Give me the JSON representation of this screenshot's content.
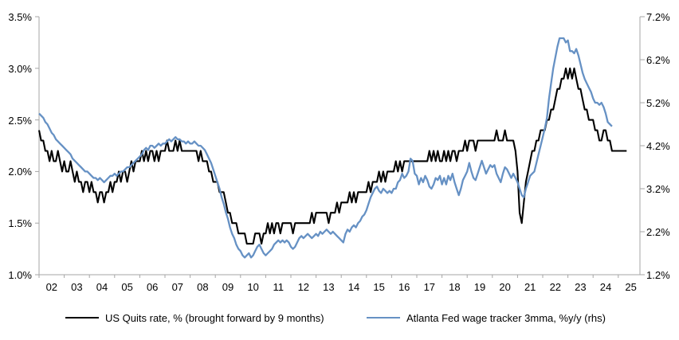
{
  "chart_data": {
    "type": "line",
    "title": "",
    "grid": "off",
    "legend_position": "bottom",
    "x_axis": {
      "tick_labels": [
        "02",
        "03",
        "04",
        "05",
        "06",
        "07",
        "08",
        "09",
        "10",
        "11",
        "12",
        "13",
        "14",
        "15",
        "16",
        "17",
        "18",
        "19",
        "20",
        "21",
        "22",
        "23",
        "24",
        "25"
      ],
      "tick_values": [
        2002,
        2003,
        2004,
        2005,
        2006,
        2007,
        2008,
        2009,
        2010,
        2011,
        2012,
        2013,
        2014,
        2015,
        2016,
        2017,
        2018,
        2019,
        2020,
        2021,
        2022,
        2023,
        2024,
        2025
      ],
      "range": [
        2002,
        2025.87
      ]
    },
    "left_axis": {
      "min": 1.0,
      "max": 3.5,
      "tick_step": 0.5,
      "tick_values": [
        3.5,
        3.0,
        2.5,
        2.0,
        1.5,
        1.0
      ],
      "tick_labels": [
        "3.5%",
        "3.0%",
        "2.5%",
        "2.0%",
        "1.5%",
        "1.0%"
      ]
    },
    "right_axis": {
      "min": 1.2,
      "max": 7.2,
      "tick_step": 1.0,
      "tick_values": [
        7.2,
        6.2,
        5.2,
        4.2,
        3.2,
        2.2,
        1.2
      ],
      "tick_labels": [
        "7.2%",
        "6.2%",
        "5.2%",
        "4.2%",
        "3.2%",
        "2.2%",
        "1.2%"
      ]
    },
    "axis_color": "#a6a6a6",
    "series": [
      {
        "name": "US Quits rate, % (brought forward by 9 months)",
        "axis": "left",
        "color": "#000000",
        "start_year": 2002.0,
        "step_years": 0.0833333,
        "values": [
          2.4,
          2.3,
          2.3,
          2.2,
          2.2,
          2.1,
          2.2,
          2.1,
          2.1,
          2.2,
          2.1,
          2.0,
          2.1,
          2.0,
          2.0,
          2.1,
          2.0,
          1.9,
          2.0,
          1.9,
          1.9,
          1.8,
          1.9,
          1.9,
          1.8,
          1.9,
          1.8,
          1.8,
          1.7,
          1.8,
          1.8,
          1.7,
          1.8,
          1.8,
          1.9,
          1.8,
          1.9,
          1.9,
          2.0,
          1.9,
          2.0,
          2.0,
          1.9,
          2.0,
          2.1,
          2.0,
          2.1,
          2.1,
          2.1,
          2.2,
          2.1,
          2.2,
          2.1,
          2.2,
          2.2,
          2.1,
          2.2,
          2.1,
          2.2,
          2.2,
          2.2,
          2.3,
          2.2,
          2.2,
          2.2,
          2.3,
          2.2,
          2.3,
          2.2,
          2.2,
          2.2,
          2.2,
          2.2,
          2.2,
          2.2,
          2.2,
          2.1,
          2.2,
          2.1,
          2.1,
          2.1,
          2.0,
          2.0,
          1.9,
          1.9,
          1.9,
          1.8,
          1.8,
          1.8,
          1.7,
          1.6,
          1.6,
          1.5,
          1.5,
          1.5,
          1.4,
          1.4,
          1.4,
          1.4,
          1.3,
          1.3,
          1.3,
          1.3,
          1.4,
          1.4,
          1.4,
          1.3,
          1.4,
          1.4,
          1.5,
          1.4,
          1.5,
          1.4,
          1.5,
          1.5,
          1.4,
          1.5,
          1.5,
          1.5,
          1.5,
          1.5,
          1.4,
          1.5,
          1.5,
          1.5,
          1.5,
          1.5,
          1.5,
          1.5,
          1.5,
          1.6,
          1.5,
          1.6,
          1.6,
          1.6,
          1.6,
          1.6,
          1.6,
          1.5,
          1.6,
          1.6,
          1.6,
          1.7,
          1.6,
          1.7,
          1.7,
          1.7,
          1.7,
          1.8,
          1.7,
          1.8,
          1.7,
          1.8,
          1.8,
          1.8,
          1.8,
          1.8,
          1.9,
          1.8,
          1.9,
          1.9,
          1.9,
          2.0,
          1.9,
          2.0,
          1.9,
          2.0,
          2.0,
          2.0,
          2.0,
          2.1,
          2.0,
          2.1,
          2.0,
          2.1,
          2.1,
          2.1,
          2.1,
          2.1,
          2.1,
          2.1,
          2.1,
          2.1,
          2.1,
          2.1,
          2.1,
          2.2,
          2.1,
          2.2,
          2.1,
          2.2,
          2.1,
          2.1,
          2.2,
          2.1,
          2.2,
          2.1,
          2.2,
          2.2,
          2.1,
          2.2,
          2.2,
          2.2,
          2.3,
          2.2,
          2.3,
          2.3,
          2.3,
          2.2,
          2.3,
          2.3,
          2.3,
          2.3,
          2.3,
          2.3,
          2.3,
          2.3,
          2.3,
          2.4,
          2.3,
          2.3,
          2.3,
          2.4,
          2.3,
          2.3,
          2.3,
          2.3,
          2.2,
          2.0,
          1.6,
          1.5,
          1.7,
          1.9,
          2.0,
          2.1,
          2.2,
          2.2,
          2.3,
          2.3,
          2.4,
          2.4,
          2.4,
          2.5,
          2.5,
          2.6,
          2.6,
          2.7,
          2.8,
          2.8,
          2.9,
          2.9,
          3.0,
          2.9,
          3.0,
          2.9,
          3.0,
          2.9,
          2.8,
          2.8,
          2.7,
          2.6,
          2.6,
          2.5,
          2.5,
          2.5,
          2.4,
          2.4,
          2.3,
          2.3,
          2.4,
          2.4,
          2.3,
          2.3,
          2.2,
          2.2,
          2.2,
          2.2,
          2.2,
          2.2,
          2.2,
          2.2
        ]
      },
      {
        "name": "Atlanta Fed wage tracker 3mma, %y/y (rhs)",
        "axis": "right",
        "color": "#6691c4",
        "start_year": 2002.0,
        "step_years": 0.0833333,
        "values": [
          4.95,
          4.9,
          4.85,
          4.75,
          4.7,
          4.6,
          4.5,
          4.45,
          4.35,
          4.3,
          4.25,
          4.2,
          4.15,
          4.1,
          4.05,
          4.0,
          3.9,
          3.85,
          3.8,
          3.75,
          3.7,
          3.65,
          3.6,
          3.6,
          3.55,
          3.5,
          3.45,
          3.45,
          3.4,
          3.45,
          3.4,
          3.35,
          3.4,
          3.45,
          3.5,
          3.5,
          3.55,
          3.5,
          3.55,
          3.6,
          3.6,
          3.65,
          3.7,
          3.7,
          3.75,
          3.8,
          3.85,
          3.9,
          3.95,
          4.0,
          4.1,
          4.15,
          4.1,
          4.2,
          4.2,
          4.15,
          4.2,
          4.25,
          4.2,
          4.25,
          4.25,
          4.3,
          4.35,
          4.3,
          4.35,
          4.4,
          4.35,
          4.35,
          4.3,
          4.3,
          4.25,
          4.3,
          4.25,
          4.25,
          4.3,
          4.25,
          4.2,
          4.2,
          4.15,
          4.1,
          4.0,
          3.9,
          3.8,
          3.65,
          3.5,
          3.35,
          3.2,
          3.0,
          2.85,
          2.65,
          2.5,
          2.3,
          2.15,
          2.05,
          1.9,
          1.8,
          1.75,
          1.65,
          1.6,
          1.65,
          1.7,
          1.6,
          1.65,
          1.75,
          1.85,
          1.9,
          1.8,
          1.7,
          1.65,
          1.7,
          1.75,
          1.8,
          1.9,
          1.95,
          2.0,
          1.95,
          2.0,
          1.95,
          2.0,
          1.95,
          1.85,
          1.8,
          1.85,
          1.95,
          2.05,
          2.1,
          2.05,
          2.1,
          2.15,
          2.1,
          2.05,
          2.1,
          2.15,
          2.1,
          2.2,
          2.15,
          2.2,
          2.25,
          2.2,
          2.15,
          2.2,
          2.15,
          2.1,
          2.05,
          2.0,
          1.95,
          2.15,
          2.25,
          2.2,
          2.3,
          2.35,
          2.3,
          2.4,
          2.45,
          2.55,
          2.6,
          2.7,
          2.85,
          3.0,
          3.1,
          3.2,
          3.25,
          3.15,
          3.1,
          3.2,
          3.15,
          3.1,
          3.15,
          3.1,
          3.2,
          3.2,
          3.35,
          3.4,
          3.55,
          3.45,
          3.5,
          3.6,
          3.9,
          3.85,
          3.55,
          3.5,
          3.3,
          3.45,
          3.35,
          3.5,
          3.4,
          3.25,
          3.2,
          3.3,
          3.45,
          3.4,
          3.5,
          3.3,
          3.45,
          3.3,
          3.5,
          3.4,
          3.55,
          3.35,
          3.2,
          3.05,
          3.2,
          3.4,
          3.5,
          3.6,
          3.8,
          3.6,
          3.45,
          3.4,
          3.55,
          3.7,
          3.85,
          3.7,
          3.55,
          3.65,
          3.75,
          3.7,
          3.75,
          3.55,
          3.45,
          3.35,
          3.55,
          3.7,
          3.65,
          3.55,
          3.45,
          3.55,
          3.45,
          3.35,
          3.2,
          3.05,
          3.0,
          3.2,
          3.35,
          3.5,
          3.55,
          3.6,
          3.8,
          4.0,
          4.2,
          4.4,
          4.6,
          4.85,
          5.3,
          5.65,
          6.0,
          6.25,
          6.5,
          6.7,
          6.7,
          6.7,
          6.6,
          6.65,
          6.4,
          6.4,
          6.35,
          6.45,
          6.3,
          6.1,
          5.9,
          5.75,
          5.65,
          5.55,
          5.45,
          5.3,
          5.2,
          5.2,
          5.15,
          5.2,
          5.1,
          4.95,
          4.75,
          4.7,
          4.65
        ]
      }
    ]
  }
}
